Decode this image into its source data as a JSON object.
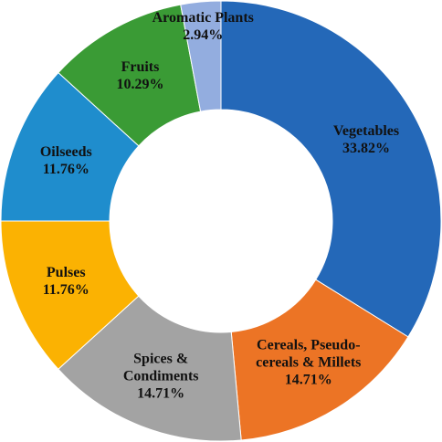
{
  "chart_data": {
    "type": "donut",
    "categories": [
      "Vegetables",
      "Cereals, Pseudo-cereals & Millets",
      "Spices & Condiments",
      "Pulses",
      "Oilseeds",
      "Fruits",
      "Aromatic Plants"
    ],
    "values": [
      33.82,
      14.71,
      14.71,
      11.76,
      11.76,
      10.29,
      2.94
    ],
    "value_labels": [
      "33.82%",
      "14.71%",
      "14.71%",
      "11.76%",
      "11.76%",
      "10.29%",
      "2.94%"
    ],
    "colors": [
      "#2468b8",
      "#ec7425",
      "#a3a3a3",
      "#fbb202",
      "#1f8dcd",
      "#3a9b35",
      "#93addf"
    ]
  }
}
